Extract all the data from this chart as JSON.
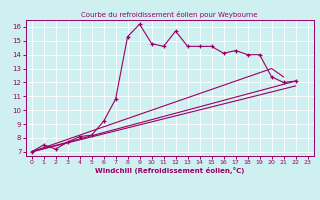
{
  "title": "Courbe du refroidissement éolien pour Weybourne",
  "xlabel": "Windchill (Refroidissement éolien,°C)",
  "xlim": [
    -0.5,
    23.5
  ],
  "ylim": [
    6.7,
    16.5
  ],
  "yticks": [
    7,
    8,
    9,
    10,
    11,
    12,
    13,
    14,
    15,
    16
  ],
  "xticks": [
    0,
    1,
    2,
    3,
    4,
    5,
    6,
    7,
    8,
    9,
    10,
    11,
    12,
    13,
    14,
    15,
    16,
    17,
    18,
    19,
    20,
    21,
    22,
    23
  ],
  "bg_color": "#cff0f0",
  "line_color": "#990066",
  "main_line": {
    "x": [
      0,
      1,
      2,
      3,
      4,
      5,
      6,
      7,
      8,
      9,
      10,
      11,
      12,
      13,
      14,
      15,
      16,
      17,
      18,
      19,
      20,
      21,
      22
    ],
    "y": [
      7.0,
      7.5,
      7.2,
      7.7,
      8.1,
      8.2,
      9.2,
      10.8,
      15.3,
      16.2,
      14.8,
      14.6,
      15.7,
      14.6,
      14.6,
      14.6,
      14.1,
      14.3,
      14.0,
      14.0,
      12.4,
      12.0,
      12.1
    ]
  },
  "fan_lines": [
    {
      "x": [
        0,
        22
      ],
      "y": [
        7.0,
        12.1
      ]
    },
    {
      "x": [
        0,
        22
      ],
      "y": [
        7.0,
        11.75
      ]
    },
    {
      "x": [
        0,
        20,
        21
      ],
      "y": [
        7.0,
        13.0,
        12.4
      ]
    }
  ]
}
